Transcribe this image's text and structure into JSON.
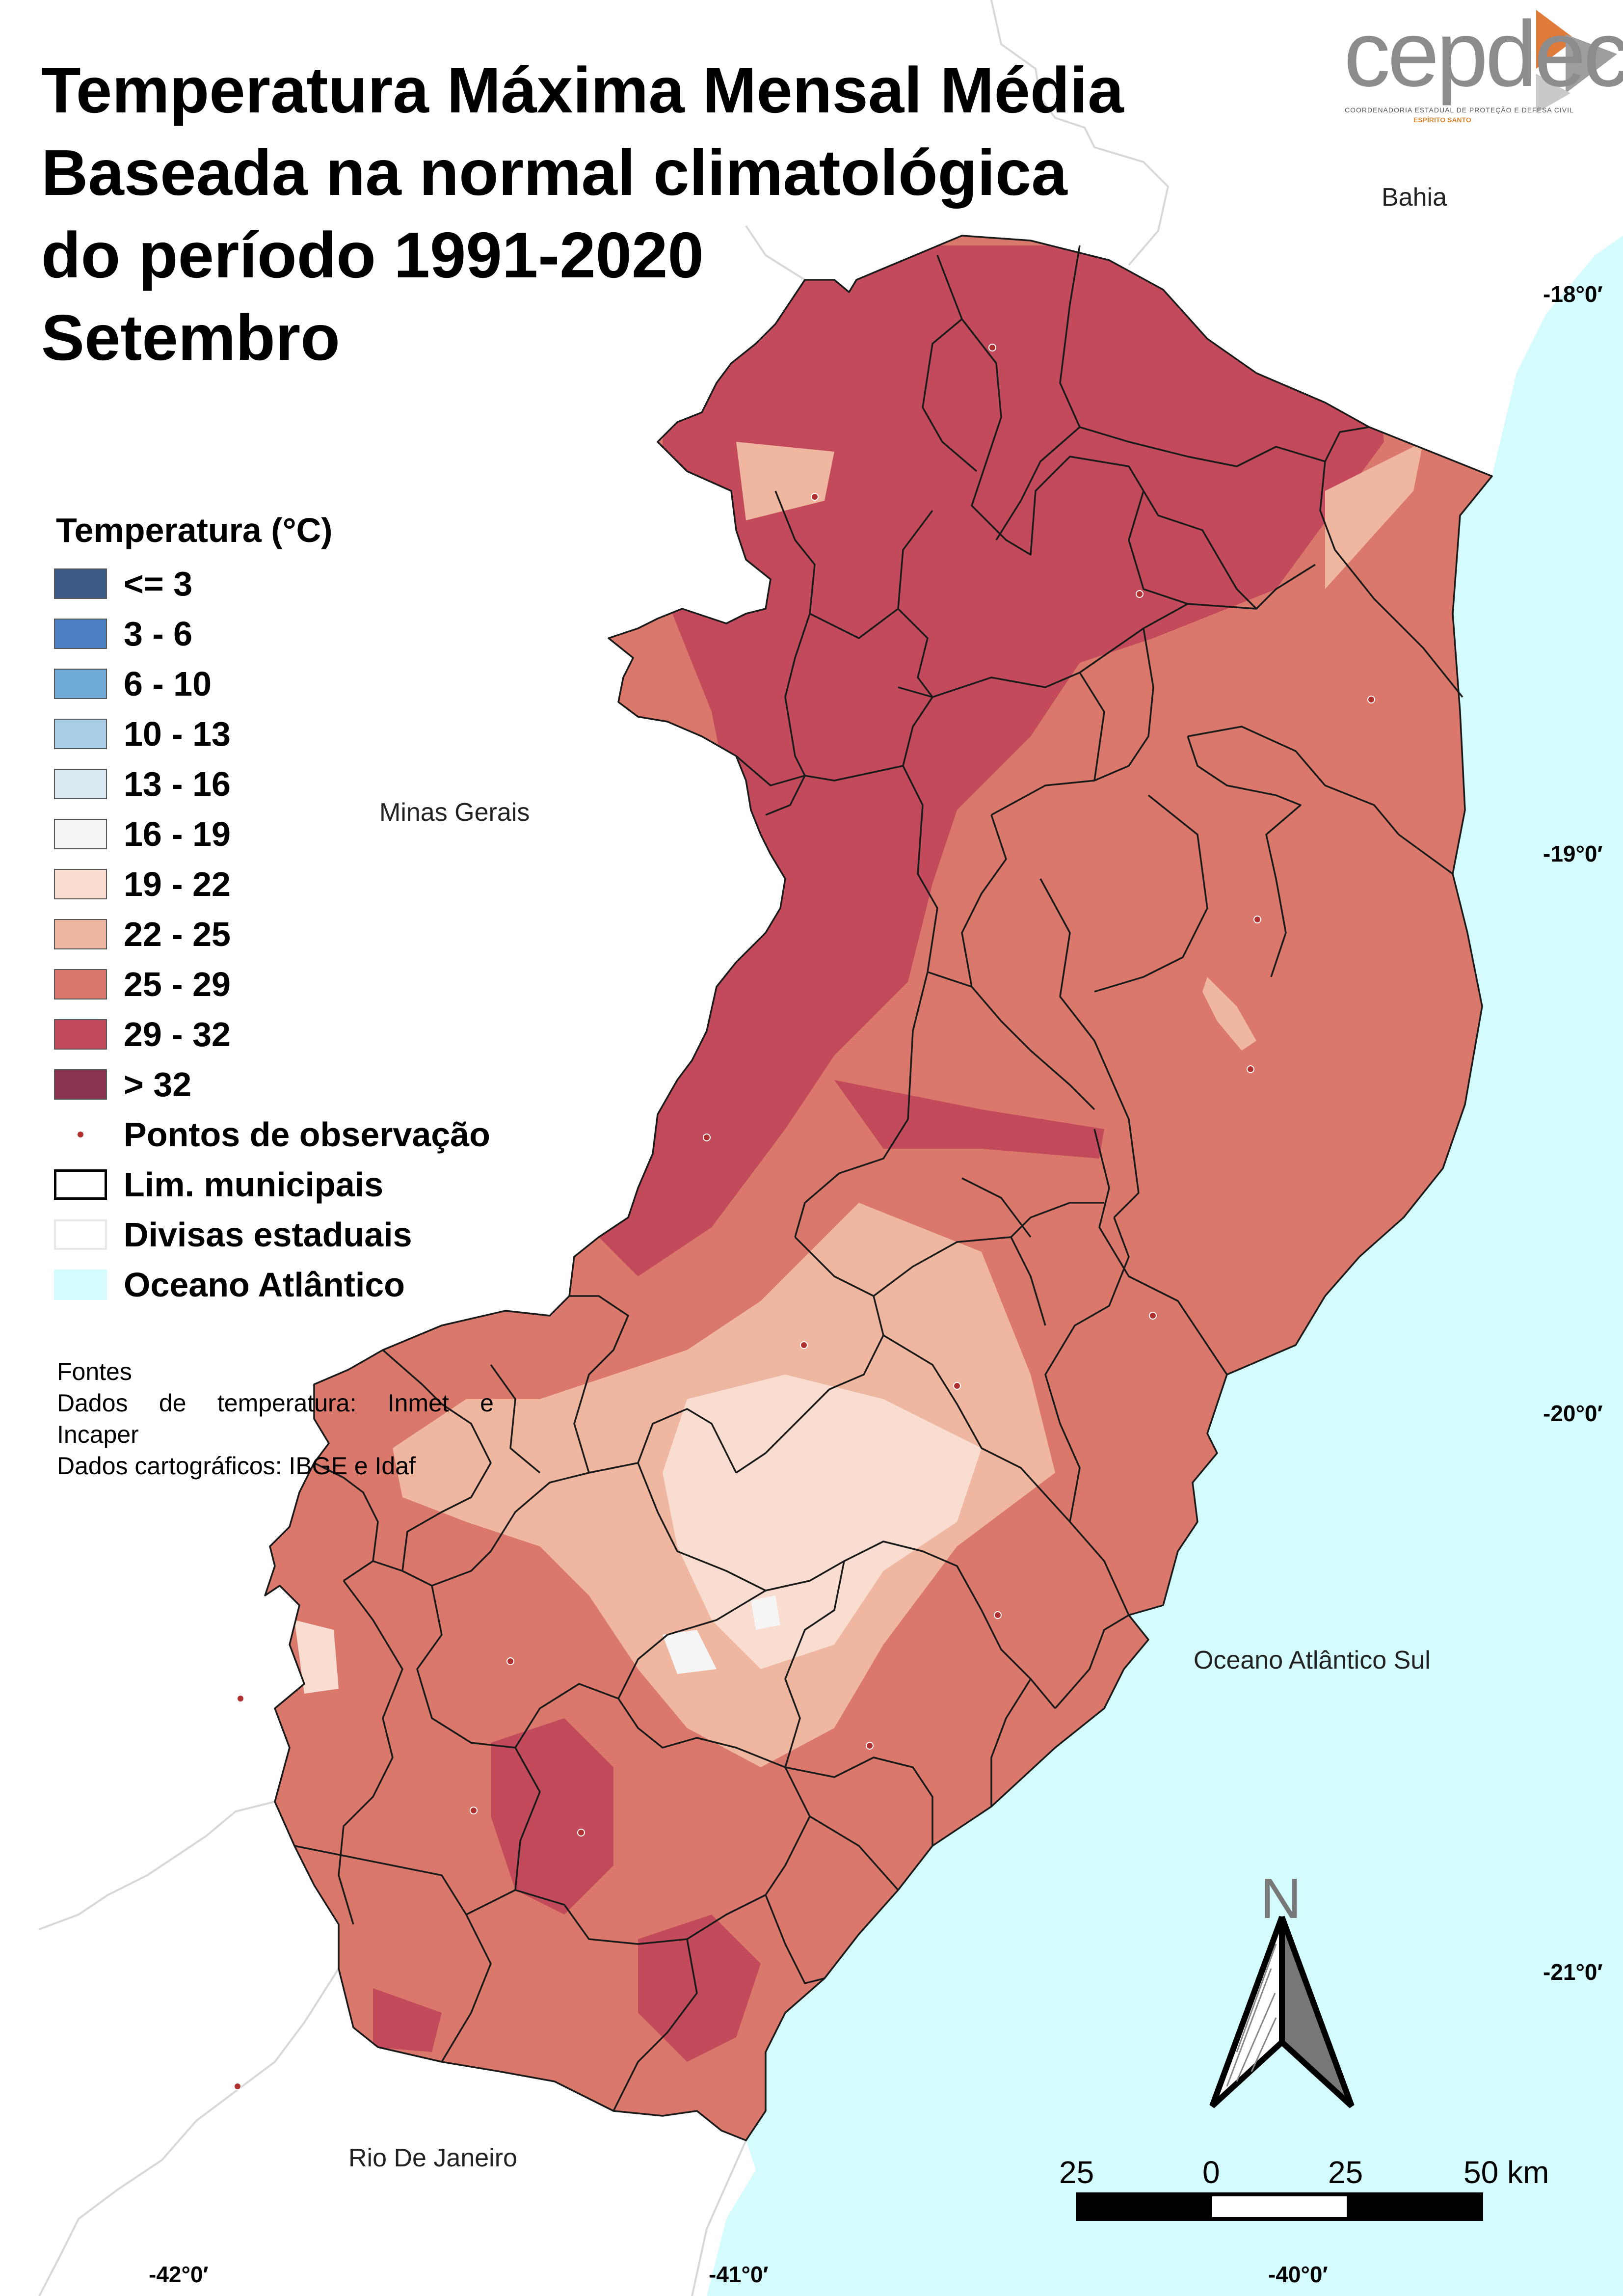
{
  "title_lines": [
    "Temperatura Máxima Mensal Média",
    "Baseada na normal climatológica",
    "do período 1991-2020",
    "Setembro"
  ],
  "logo": {
    "text": "cepdec",
    "subtitle": "COORDENADORIA ESTADUAL DE PROTEÇÃO E DEFESA CIVIL",
    "subtitle2": "ESPÍRITO SANTO",
    "accent_color": "#e07b39"
  },
  "legend": {
    "title": "Temperatura (°C)",
    "classes": [
      {
        "label": "<= 3",
        "color": "#3c5a86"
      },
      {
        "label": "3 - 6",
        "color": "#4a80c1"
      },
      {
        "label": "6 - 10",
        "color": "#6faad6"
      },
      {
        "label": "10 - 13",
        "color": "#a9cfe8"
      },
      {
        "label": "13 - 16",
        "color": "#dbe9f3"
      },
      {
        "label": "16 - 19",
        "color": "#f5f5f5"
      },
      {
        "label": "19 - 22",
        "color": "#f9ddd0"
      },
      {
        "label": "22 - 25",
        "color": "#efb6a0"
      },
      {
        "label": "25 - 29",
        "color": "#d9786b"
      },
      {
        "label": "29 - 32",
        "color": "#c24a5b"
      },
      {
        "label": "> 32",
        "color": "#8a3451"
      }
    ],
    "observation_points": "Pontos de observação",
    "municipal_limits": "Lim. municipais",
    "state_borders": "Divisas estaduais",
    "ocean": "Oceano Atlântico",
    "ocean_color": "#d4fbfd",
    "point_color": "#b03030"
  },
  "sources": {
    "heading": "Fontes",
    "line1_words": [
      "Dados",
      "de",
      "temperatura:",
      "Inmet",
      "e"
    ],
    "line2": "Incaper",
    "line3": "Dados cartográficos: IBGE e Idaf"
  },
  "place_labels": {
    "bahia": "Bahia",
    "minas_gerais": "Minas Gerais",
    "rio_de_janeiro": "Rio De Janeiro",
    "oceano_atlantico_sul": "Oceano Atlântico Sul"
  },
  "coordinates": {
    "lat_18": "-18°0′",
    "lat_19": "-19°0′",
    "lat_20": "-20°0′",
    "lat_21": "-21°0′",
    "lon_42": "-42°0′",
    "lon_41": "-41°0′",
    "lon_40": "-40°0′"
  },
  "north_arrow": {
    "label": "N"
  },
  "scale_bar": {
    "labels": [
      "25",
      "0",
      "25",
      "50 km"
    ]
  }
}
